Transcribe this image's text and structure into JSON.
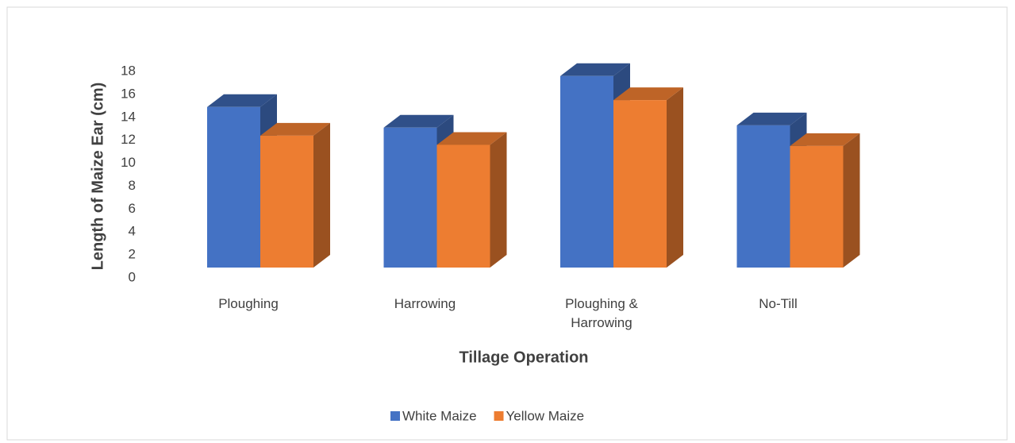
{
  "chart_data": {
    "type": "bar3d",
    "categories": [
      "Ploughing",
      "Harrowing",
      "Ploughing & Harrowing",
      "No-Till"
    ],
    "series": [
      {
        "name": "White Maize",
        "color": "#4472c4",
        "values": [
          14.0,
          12.2,
          16.7,
          12.4
        ]
      },
      {
        "name": "Yellow Maize",
        "color": "#ed7d31",
        "values": [
          11.5,
          10.7,
          14.6,
          10.6
        ]
      }
    ],
    "ylim": [
      0,
      18
    ],
    "yticks": [
      0,
      2,
      4,
      6,
      8,
      10,
      12,
      14,
      16,
      18
    ],
    "xlabel": "Tillage Operation",
    "ylabel": "Length of Maize  Ear (cm)",
    "legend": "bottom"
  }
}
